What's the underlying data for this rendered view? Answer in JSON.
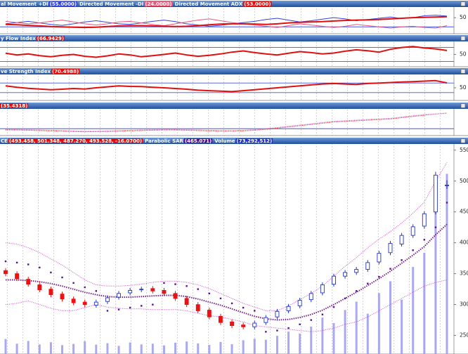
{
  "chart_data": [
    {
      "type": "line",
      "ylim": [
        0,
        80
      ],
      "yticks": [
        50
      ],
      "hlines": [
        20
      ],
      "series": [
        {
          "name": "al Movement +DI",
          "value_label": "(55.0000)",
          "color": "#3344dd",
          "style": "thin",
          "values": [
            30,
            34,
            38,
            33,
            28,
            25,
            30,
            36,
            40,
            35,
            30,
            28,
            33,
            38,
            42,
            37,
            30,
            26,
            22,
            25,
            30,
            34,
            38,
            44,
            48,
            42,
            36,
            40,
            45,
            50,
            46,
            40,
            44,
            48,
            52,
            47,
            50,
            56,
            58,
            55
          ]
        },
        {
          "name": "Directed Movement -DI",
          "value_label": "(24.0000)",
          "color": "#ee5577",
          "style": "thin",
          "values": [
            38,
            34,
            30,
            33,
            38,
            42,
            36,
            30,
            26,
            30,
            36,
            38,
            33,
            28,
            24,
            30,
            36,
            42,
            46,
            40,
            34,
            30,
            26,
            22,
            18,
            24,
            30,
            26,
            22,
            18,
            22,
            28,
            24,
            20,
            16,
            20,
            22,
            18,
            16,
            24
          ]
        },
        {
          "name": "Directed Movement ADX",
          "value_label": "(53.0000)",
          "color": "#e01010",
          "style": "thick",
          "values": [
            28,
            27,
            25,
            23,
            21,
            20,
            19,
            18,
            19,
            21,
            23,
            24,
            24,
            23,
            22,
            21,
            22,
            24,
            27,
            29,
            30,
            30,
            29,
            28,
            30,
            33,
            35,
            36,
            37,
            39,
            41,
            42,
            43,
            44,
            46,
            48,
            50,
            51,
            52,
            53
          ]
        }
      ]
    },
    {
      "type": "line",
      "ylim": [
        0,
        100
      ],
      "yticks": [
        50
      ],
      "hlines": [
        20,
        80
      ],
      "series": [
        {
          "name": "y Flow Index",
          "value_label": "(66.9429)",
          "color": "#e01010",
          "style": "thick",
          "values": [
            55,
            48,
            52,
            45,
            40,
            46,
            50,
            42,
            38,
            44,
            52,
            48,
            40,
            45,
            50,
            56,
            48,
            42,
            46,
            52,
            60,
            65,
            58,
            52,
            48,
            55,
            62,
            58,
            52,
            56,
            64,
            70,
            66,
            60,
            72,
            80,
            84,
            78,
            74,
            66.9429
          ]
        }
      ]
    },
    {
      "type": "line",
      "ylim": [
        0,
        100
      ],
      "yticks": [
        50
      ],
      "hlines": [
        30,
        70
      ],
      "series": [
        {
          "name": "ve Strength Index",
          "value_label": "(70.4988)",
          "color": "#e01010",
          "style": "thick",
          "values": [
            58,
            52,
            48,
            45,
            42,
            44,
            47,
            45,
            50,
            54,
            58,
            56,
            55,
            52,
            50,
            47,
            44,
            40,
            38,
            36,
            34,
            38,
            42,
            46,
            50,
            54,
            58,
            62,
            66,
            68,
            66,
            64,
            68,
            70,
            72,
            74,
            76,
            78,
            80,
            70.4988
          ]
        }
      ]
    },
    {
      "type": "line",
      "ylim": [
        0,
        40
      ],
      "yticks": [],
      "hlines": [
        10
      ],
      "series": [
        {
          "value_label": "(35.4318)",
          "color": "#e01010",
          "style": "dotted",
          "values": [
            8,
            8,
            7.5,
            7,
            6.5,
            6,
            5.5,
            5,
            5.2,
            5.5,
            6,
            6.5,
            7,
            7.5,
            8,
            8,
            7.5,
            7,
            6.5,
            6,
            6,
            6.5,
            7.5,
            9,
            11,
            13,
            15,
            17,
            19,
            21,
            22,
            23,
            24,
            25,
            26,
            28,
            30,
            32,
            34,
            35.4318
          ]
        },
        {
          "color": "#dd66dd",
          "style": "dotted",
          "values": [
            9,
            9,
            8.5,
            8,
            7.5,
            7,
            6.5,
            6,
            6,
            6.5,
            7,
            7.5,
            8,
            8.5,
            9,
            9,
            8.5,
            8,
            7.5,
            7,
            7,
            7.5,
            8.5,
            10,
            12,
            14,
            16,
            18,
            20,
            22,
            23,
            24,
            25,
            26,
            27,
            29,
            31,
            33,
            34,
            35
          ]
        }
      ]
    },
    {
      "type": "candlestick",
      "name": "CE",
      "value_label": "(493.458, 501.348, 487.270, 493.528, -16.0700)",
      "label_color": "#e01010",
      "up_color": "#2233cc",
      "down_color": "#ee1111",
      "ylim": [
        220,
        560
      ],
      "yticks": [
        250,
        300,
        350,
        400,
        450,
        500,
        550
      ],
      "vlim": [
        0,
        80000000
      ],
      "open": [
        355,
        350,
        341,
        332,
        325,
        317,
        309,
        304,
        299,
        305,
        312,
        319,
        324,
        326,
        323,
        318,
        310,
        300,
        291,
        281,
        272,
        267,
        264,
        271,
        280,
        290,
        298,
        308,
        319,
        333,
        346,
        352,
        357,
        369,
        384,
        398,
        412,
        427,
        450,
        493.458
      ],
      "high": [
        359,
        354,
        345,
        336,
        329,
        321,
        313,
        308,
        308,
        315,
        322,
        327,
        329,
        330,
        327,
        322,
        314,
        304,
        295,
        285,
        276,
        271,
        274,
        283,
        293,
        301,
        311,
        322,
        336,
        350,
        356,
        361,
        372,
        387,
        403,
        416,
        430,
        451,
        515,
        501.348
      ],
      "low": [
        346,
        338,
        329,
        320,
        312,
        305,
        299,
        296,
        295,
        301,
        308,
        315,
        320,
        318,
        314,
        306,
        296,
        286,
        276,
        267,
        262,
        260,
        260,
        267,
        276,
        286,
        294,
        304,
        315,
        329,
        342,
        348,
        353,
        365,
        380,
        394,
        408,
        423,
        446,
        487.27
      ],
      "close": [
        350,
        342,
        333,
        324,
        316,
        309,
        303,
        300,
        304,
        311,
        318,
        323,
        325,
        322,
        318,
        310,
        300,
        290,
        280,
        271,
        266,
        264,
        270,
        279,
        289,
        297,
        307,
        318,
        332,
        346,
        352,
        357,
        368,
        383,
        399,
        412,
        426,
        447,
        509.598,
        493.528
      ],
      "sar": {
        "name": "Parabolic SAR",
        "value_label": "(465.071)",
        "color": "#551199",
        "values": [
          370,
          368,
          365,
          360,
          352,
          344,
          335,
          328,
          322,
          290,
          292,
          295,
          298,
          300,
          335,
          333,
          330,
          325,
          318,
          310,
          302,
          295,
          290,
          256,
          258,
          262,
          268,
          275,
          284,
          296,
          310,
          322,
          334,
          345,
          358,
          372,
          388,
          405,
          425,
          465.071
        ]
      },
      "volume": {
        "name": "Volume",
        "value_label": "(73,292,512)",
        "color": "#9a9aee",
        "values": [
          6100000,
          4200000,
          5300000,
          3900000,
          4800000,
          3600000,
          4100000,
          5200000,
          3800000,
          4400000,
          3300000,
          4700000,
          3900000,
          4200000,
          3500000,
          4600000,
          5100000,
          4300000,
          3700000,
          4900000,
          4000000,
          5600000,
          6200000,
          5800000,
          7400000,
          9100000,
          8300000,
          11200000,
          14800000,
          12600000,
          17900000,
          21300000,
          16400000,
          24800000,
          29600000,
          22100000,
          35400000,
          41200000,
          58700000,
          73292512
        ]
      },
      "bands": {
        "color": "#cc44cc",
        "middle_color": "#7a1f8a",
        "upper": [
          400,
          398,
          392,
          384,
          374,
          364,
          352,
          340,
          332,
          330,
          330,
          331,
          333,
          336,
          338,
          338,
          336,
          332,
          326,
          318,
          310,
          302,
          296,
          290,
          290,
          298,
          308,
          318,
          330,
          346,
          362,
          376,
          392,
          406,
          418,
          432,
          448,
          466,
          500,
          530
        ],
        "middle": [
          340,
          340,
          339,
          337,
          334,
          330,
          325,
          320,
          316,
          313,
          312,
          312,
          313,
          314,
          315,
          315,
          313,
          309,
          304,
          299,
          293,
          287,
          281,
          277,
          275,
          276,
          279,
          284,
          291,
          300,
          310,
          320,
          331,
          342,
          354,
          367,
          380,
          394,
          413,
          430
        ],
        "lower": [
          300,
          302,
          306,
          300,
          294,
          290,
          290,
          295,
          300,
          296,
          294,
          293,
          293,
          292,
          292,
          292,
          290,
          286,
          282,
          280,
          276,
          272,
          266,
          264,
          262,
          260,
          258,
          256,
          258,
          262,
          268,
          272,
          280,
          290,
          300,
          310,
          320,
          330,
          336,
          340
        ]
      }
    }
  ]
}
